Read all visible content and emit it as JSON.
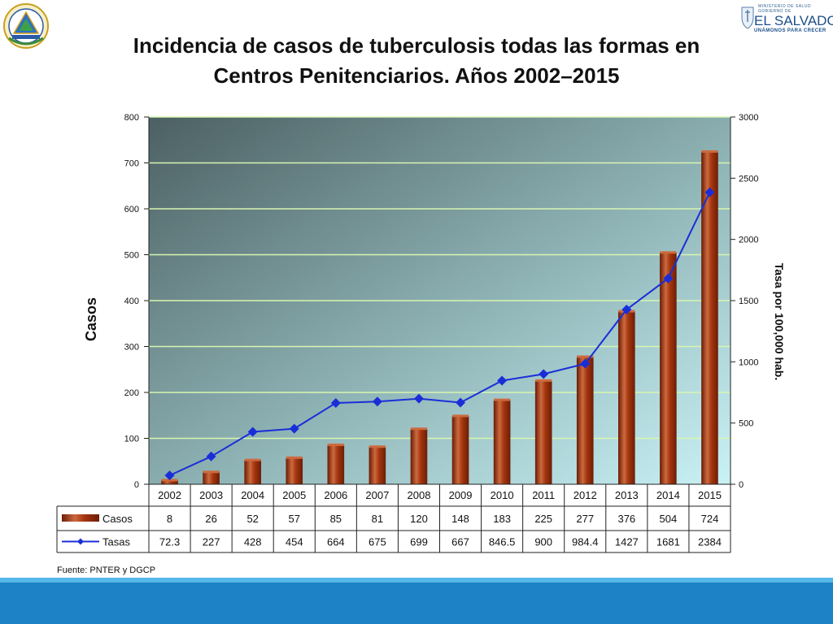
{
  "slide": {
    "title_line1": "Incidencia de casos de tuberculosis todas las formas en",
    "title_line2": "Centros Penitenciarios. Años 2002–2015",
    "source": "Fuente: PNTER y  DGCP"
  },
  "logo": {
    "line1": "MINISTERIO DE SALUD",
    "line2": "GOBIERNO DE",
    "line3": "EL SALVADOR",
    "line4": "UNÁMONOS PARA CRECER"
  },
  "colors": {
    "bar": "#a5360f",
    "bar_dark": "#6e1e06",
    "bar_light": "#cc6a3f",
    "line": "#1a2ed8",
    "gridline": "#d8f5b0",
    "plot_bg_dark": "#4c6063",
    "plot_bg_light": "#c9f2f6",
    "band_light": "#54b7e6",
    "band_dark": "#1e82c6"
  },
  "chart_data": {
    "type": "bar",
    "title": "",
    "categories": [
      "2002",
      "2003",
      "2004",
      "2005",
      "2006",
      "2007",
      "2008",
      "2009",
      "2010",
      "2011",
      "2012",
      "2013",
      "2014",
      "2015"
    ],
    "series": [
      {
        "name": "Casos",
        "type": "bar",
        "axis": "left",
        "values": [
          8,
          26,
          52,
          57,
          85,
          81,
          120,
          148,
          183,
          225,
          277,
          376,
          504,
          724
        ],
        "labels": [
          "8",
          "26",
          "52",
          "57",
          "85",
          "81",
          "120",
          "148",
          "183",
          "225",
          "277",
          "376",
          "504",
          "724"
        ]
      },
      {
        "name": "Tasas",
        "type": "line",
        "axis": "right",
        "values": [
          72.3,
          227,
          428,
          454,
          664,
          675,
          699,
          667,
          846.5,
          900,
          984.4,
          1427,
          1681,
          2384
        ],
        "labels": [
          "72.3",
          "227",
          "428",
          "454",
          "664",
          "675",
          "699",
          "667",
          "846.5",
          "900",
          "984.4",
          "1427",
          "1681",
          "2384"
        ]
      }
    ],
    "ylabel": "Casos",
    "ylabel_right": "Tasa por 100,000 hab.",
    "ylim": [
      0,
      800
    ],
    "ylim_right": [
      0,
      3000
    ],
    "yticks": [
      "0",
      "100",
      "200",
      "300",
      "400",
      "500",
      "600",
      "700",
      "800"
    ],
    "yticks_right": [
      "0",
      "500",
      "1000",
      "1500",
      "2000",
      "2500",
      "3000"
    ],
    "grid": true,
    "legend": "data-table"
  }
}
